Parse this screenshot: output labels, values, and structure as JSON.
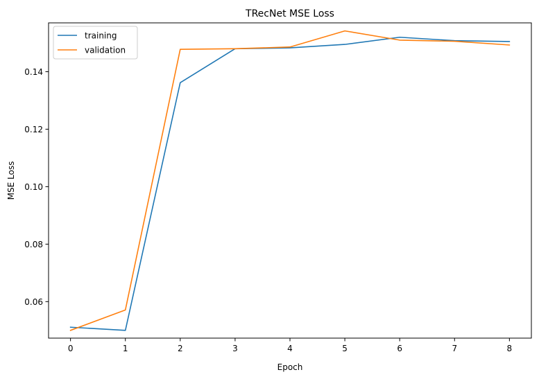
{
  "chart_data": {
    "type": "line",
    "title": "TRecNet MSE Loss",
    "xlabel": "Epoch",
    "ylabel": "MSE Loss",
    "x": [
      0,
      1,
      2,
      3,
      4,
      5,
      6,
      7,
      8
    ],
    "xticks": [
      "0",
      "1",
      "2",
      "3",
      "4",
      "5",
      "6",
      "7",
      "8"
    ],
    "yticks": [
      "0.06",
      "0.08",
      "0.10",
      "0.12",
      "0.14"
    ],
    "ytick_values": [
      0.06,
      0.08,
      0.1,
      0.12,
      0.14
    ],
    "xlim": [
      -0.4,
      8.4
    ],
    "ylim": [
      0.0473,
      0.157
    ],
    "grid": false,
    "legend_position": "upper-left",
    "series": [
      {
        "name": "training",
        "color": "#1f77b4",
        "values": [
          0.0511,
          0.05,
          0.1362,
          0.148,
          0.1483,
          0.1495,
          0.152,
          0.1508,
          0.1505
        ]
      },
      {
        "name": "validation",
        "color": "#ff7f0e",
        "values": [
          0.05,
          0.0571,
          0.1478,
          0.148,
          0.1486,
          0.1542,
          0.151,
          0.1506,
          0.1493
        ]
      }
    ]
  }
}
